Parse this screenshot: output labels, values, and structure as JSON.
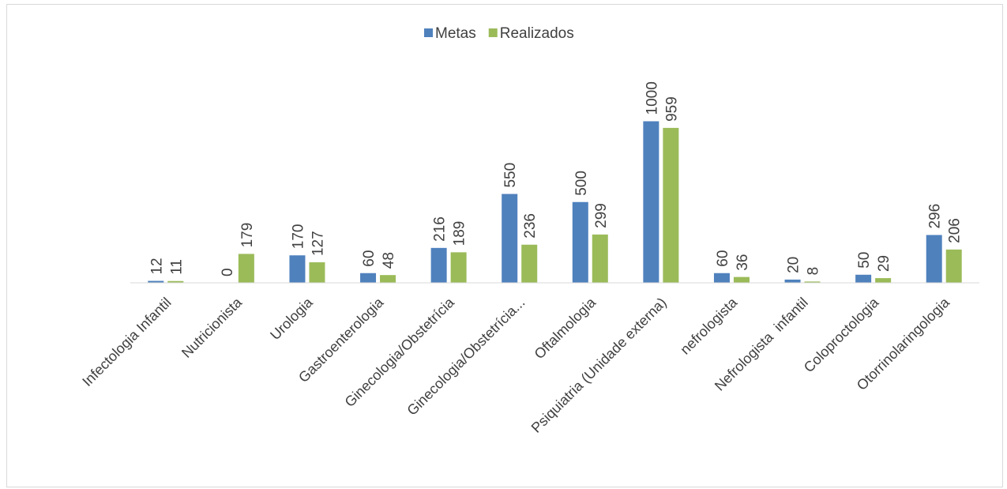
{
  "chart_data": {
    "type": "bar",
    "title": "",
    "xlabel": "",
    "ylabel": "",
    "legend_position": "top",
    "grid": false,
    "categories": [
      "Infectologia Infantil",
      "Nutricionista",
      "Urologia",
      "Gastroenterologia",
      "Ginecologia/Obstetrícia",
      "Ginecologia/Obstetrícia...",
      "Oftalmologia",
      "Psiquiatria (Unidade externa)",
      "nefrologista",
      "Nefrologista  infantil",
      "Coloproctologia",
      "Otorrinolaringologia"
    ],
    "series": [
      {
        "name": "Metas",
        "color": "#4f81bd",
        "values": [
          12,
          0,
          170,
          60,
          216,
          550,
          500,
          1000,
          60,
          20,
          50,
          296
        ]
      },
      {
        "name": "Realizados",
        "color": "#9bbb59",
        "values": [
          11,
          179,
          127,
          48,
          189,
          236,
          299,
          959,
          36,
          8,
          29,
          206
        ]
      }
    ],
    "ylim": [
      0,
      1200
    ]
  }
}
